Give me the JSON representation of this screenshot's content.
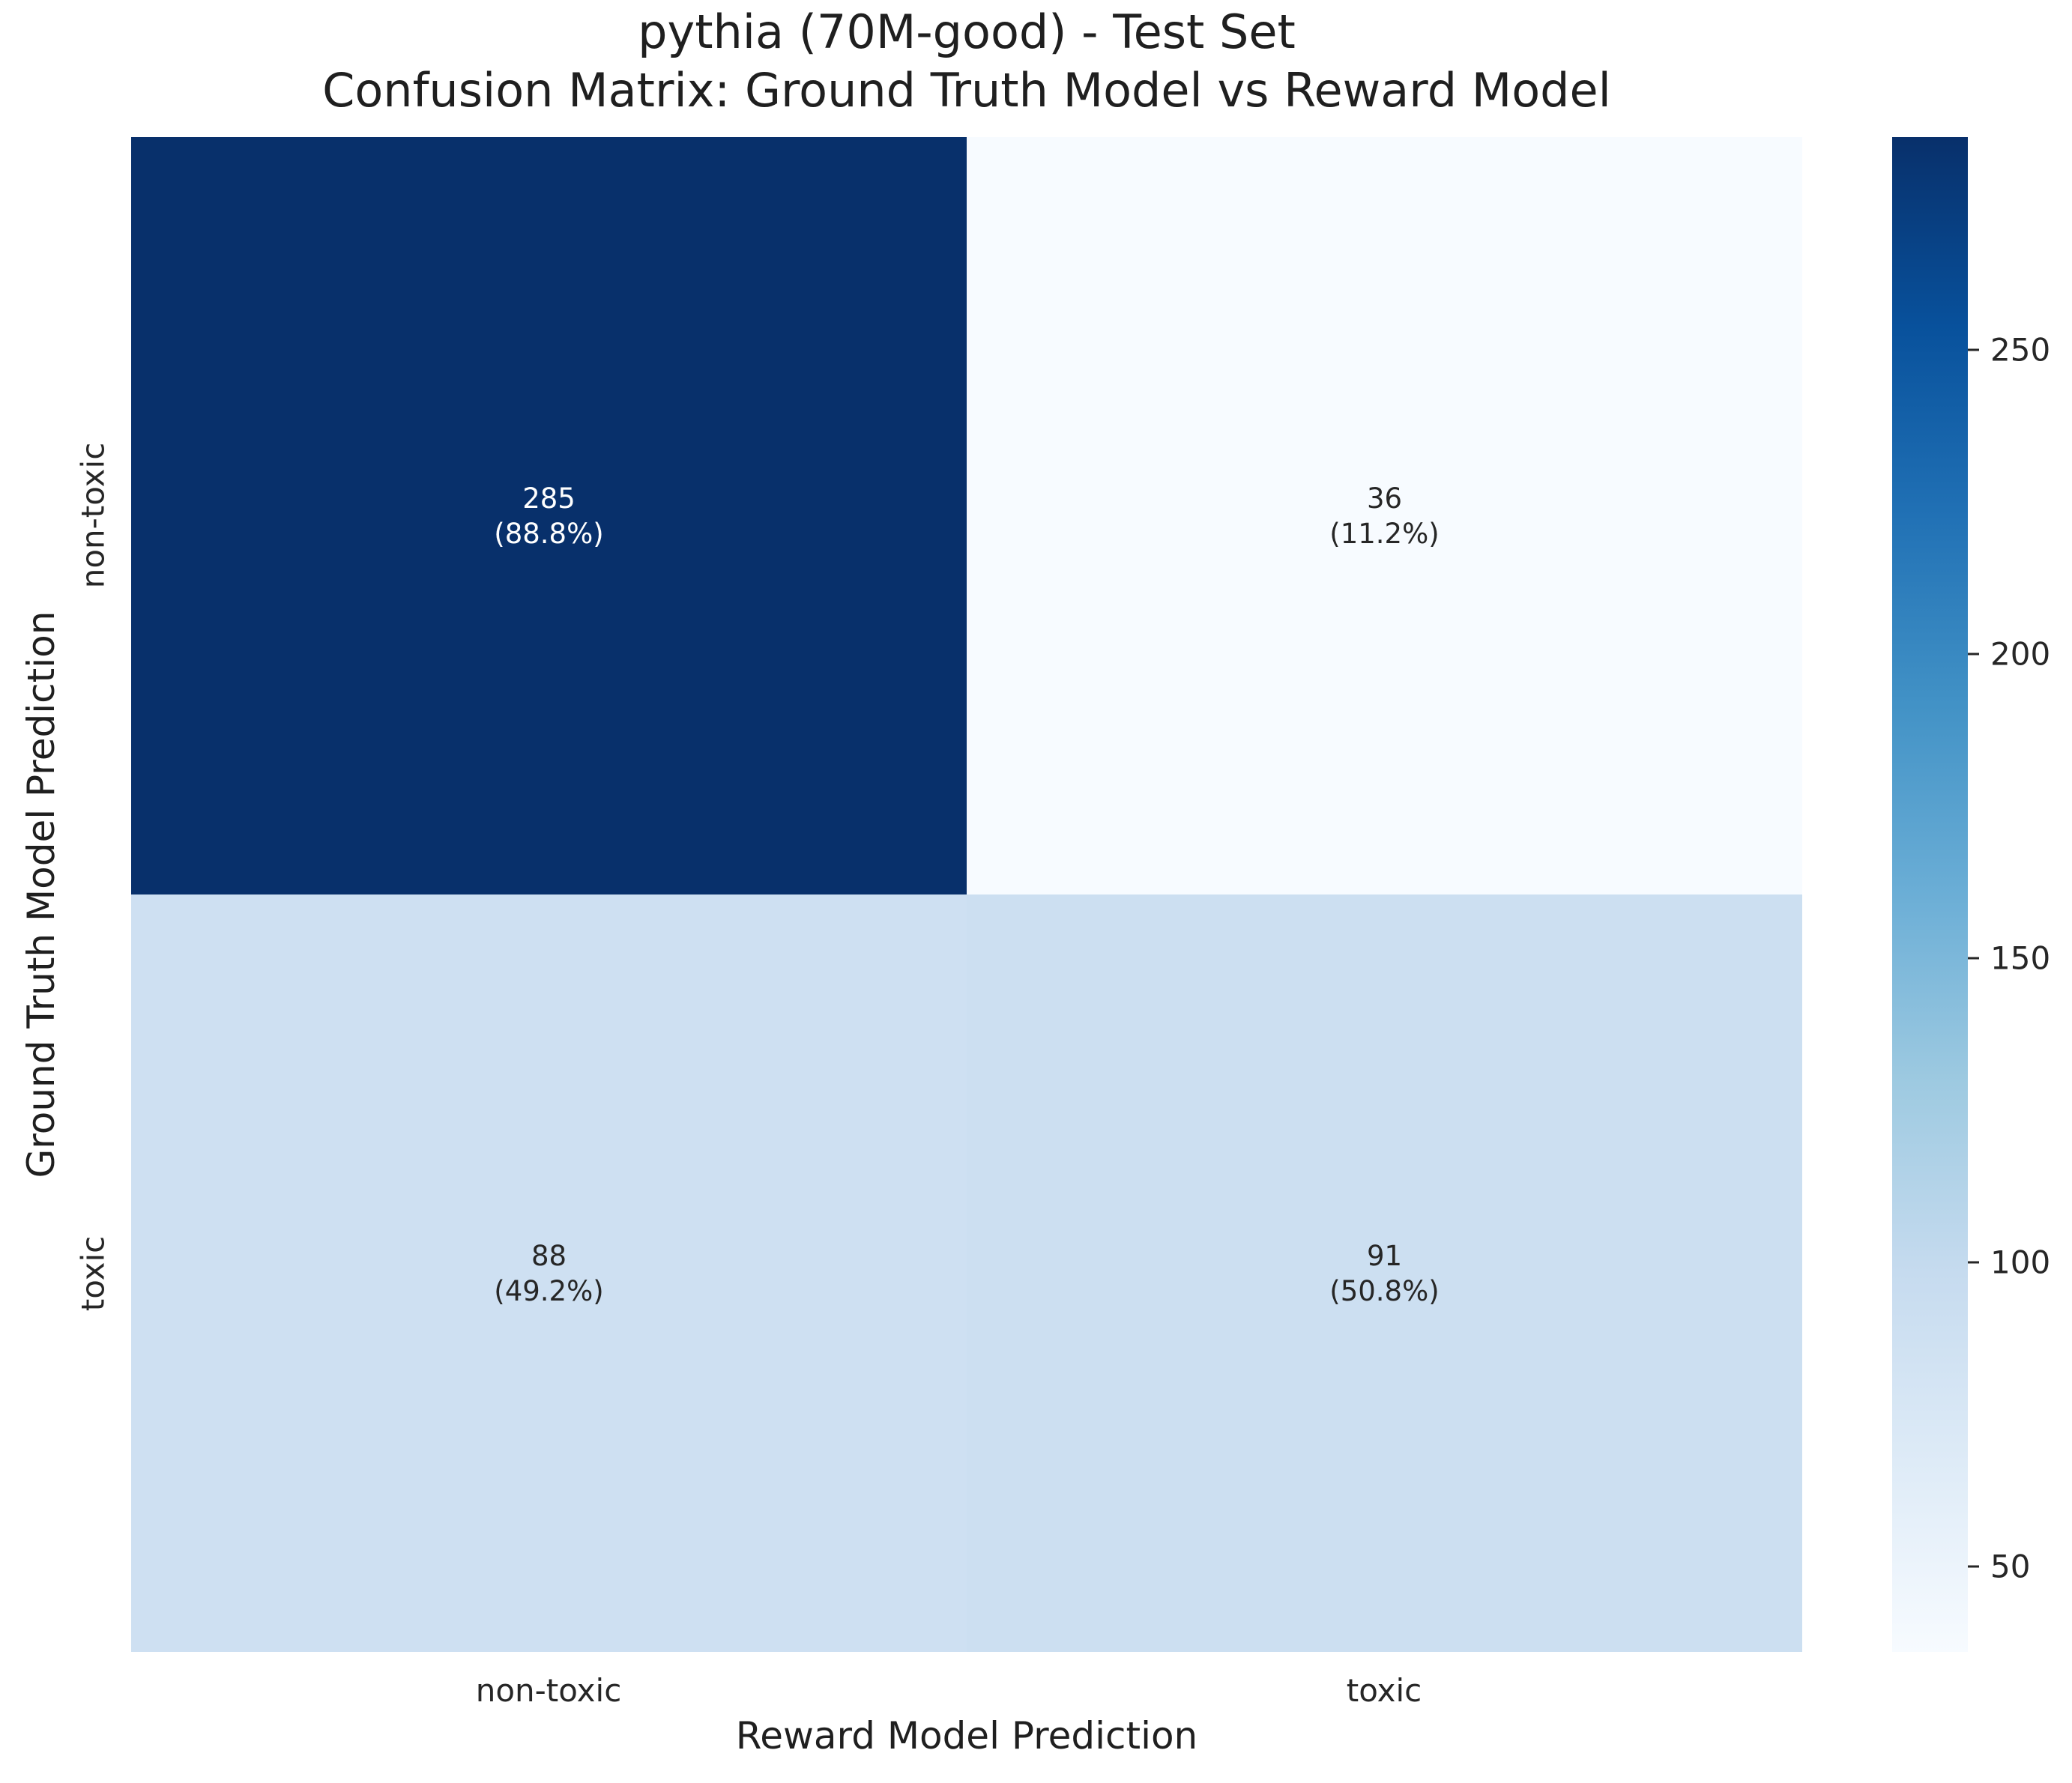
{
  "title": {
    "line1": "pythia (70M-good) - Test Set",
    "line2": "Confusion Matrix: Ground Truth Model vs Reward Model"
  },
  "axes": {
    "xlabel": "Reward Model Prediction",
    "ylabel": "Ground Truth Model Prediction",
    "x_ticks": [
      "non-toxic",
      "toxic"
    ],
    "y_ticks": [
      "non-toxic",
      "toxic"
    ]
  },
  "cells": [
    {
      "row": "non-toxic",
      "col": "non-toxic",
      "count": "285",
      "percent": "(88.8%)",
      "bg": "#08306b",
      "text_color": "#ffffff"
    },
    {
      "row": "non-toxic",
      "col": "toxic",
      "count": "36",
      "percent": "(11.2%)",
      "bg": "#f7fbff",
      "text_color": "#262626"
    },
    {
      "row": "toxic",
      "col": "non-toxic",
      "count": "88",
      "percent": "(49.2%)",
      "bg": "#cee0f2",
      "text_color": "#262626"
    },
    {
      "row": "toxic",
      "col": "toxic",
      "count": "91",
      "percent": "(50.8%)",
      "bg": "#ccdff1",
      "text_color": "#262626"
    }
  ],
  "colorbar": {
    "vmin": 36,
    "vmax": 285,
    "ticks": [
      {
        "label": "250",
        "value": 250
      },
      {
        "label": "200",
        "value": 200
      },
      {
        "label": "150",
        "value": 150
      },
      {
        "label": "100",
        "value": 100
      },
      {
        "label": "50",
        "value": 50
      }
    ],
    "gradient_stops": [
      "#f7fbff",
      "#deebf7",
      "#c6dbef",
      "#9ecae1",
      "#6baed6",
      "#4292c6",
      "#2171b5",
      "#08519c",
      "#08306b"
    ]
  },
  "chart_data": {
    "type": "heatmap",
    "title": "pythia (70M-good) - Test Set\nConfusion Matrix: Ground Truth Model vs Reward Model",
    "xlabel": "Reward Model Prediction",
    "ylabel": "Ground Truth Model Prediction",
    "x_categories": [
      "non-toxic",
      "toxic"
    ],
    "y_categories": [
      "non-toxic",
      "toxic"
    ],
    "values": [
      [
        285,
        36
      ],
      [
        88,
        91
      ]
    ],
    "row_percentages": [
      [
        88.8,
        11.2
      ],
      [
        49.2,
        50.8
      ]
    ],
    "cell_labels": [
      [
        "285\n(88.8%)",
        "36\n(11.2%)"
      ],
      [
        "88\n(49.2%)",
        "91\n(50.8%)"
      ]
    ],
    "colormap": "Blues",
    "vmin": 36,
    "vmax": 285,
    "colorbar_ticks": [
      50,
      100,
      150,
      200,
      250
    ],
    "legend_position": "right-colorbar",
    "grid": false
  }
}
